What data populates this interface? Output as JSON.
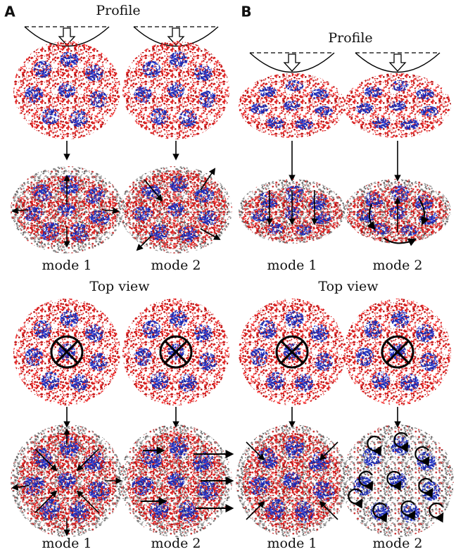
{
  "panels": [
    {
      "label": "A",
      "sections": [
        {
          "title": "Profile",
          "modes": [
            "mode 1",
            "mode 2"
          ]
        },
        {
          "title": "Top view",
          "modes": [
            "mode 1",
            "mode 2"
          ]
        }
      ]
    },
    {
      "label": "B",
      "sections": [
        {
          "title": "Profile",
          "modes": [
            "mode 1",
            "mode 2"
          ]
        },
        {
          "title": "Top view",
          "modes": [
            "mode 1",
            "mode 2"
          ]
        }
      ]
    }
  ]
}
